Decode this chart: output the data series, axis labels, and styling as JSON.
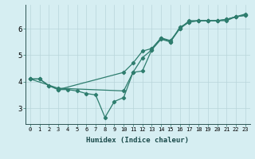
{
  "line1_x": [
    0,
    1,
    2,
    3,
    10,
    11,
    12,
    13,
    14,
    15,
    16,
    17,
    18,
    19,
    20,
    21,
    22,
    23
  ],
  "line1_y": [
    4.1,
    4.1,
    3.85,
    3.7,
    4.35,
    4.7,
    5.15,
    5.25,
    5.65,
    5.5,
    6.05,
    6.25,
    6.3,
    6.3,
    6.3,
    6.35,
    6.45,
    6.55
  ],
  "line2_x": [
    0,
    3,
    10,
    11,
    12,
    13,
    14,
    15,
    16,
    17,
    18,
    19,
    20,
    21,
    22,
    23
  ],
  "line2_y": [
    4.1,
    3.75,
    3.65,
    4.35,
    4.9,
    5.2,
    5.6,
    5.5,
    6.0,
    6.25,
    6.3,
    6.3,
    6.3,
    6.3,
    6.45,
    6.5
  ],
  "line3_x": [
    0,
    1,
    2,
    3,
    4,
    5,
    6,
    7,
    8,
    9,
    10,
    11,
    12,
    13,
    14,
    15,
    16,
    17,
    18,
    19,
    20,
    21,
    22,
    23
  ],
  "line3_y": [
    4.1,
    4.1,
    3.85,
    3.7,
    3.7,
    3.65,
    3.55,
    3.5,
    2.65,
    3.25,
    3.4,
    4.35,
    4.4,
    5.2,
    5.65,
    5.55,
    6.0,
    6.3,
    6.3,
    6.3,
    6.3,
    6.35,
    6.45,
    6.5
  ],
  "line_color": "#2e7d6e",
  "bg_color": "#d6eef2",
  "grid_color": "#b8d5da",
  "xlabel": "Humidex (Indice chaleur)",
  "xlim": [
    -0.5,
    23.5
  ],
  "ylim": [
    2.4,
    6.9
  ],
  "yticks": [
    3,
    4,
    5,
    6
  ],
  "xticks": [
    0,
    1,
    2,
    3,
    4,
    5,
    6,
    7,
    8,
    9,
    10,
    11,
    12,
    13,
    14,
    15,
    16,
    17,
    18,
    19,
    20,
    21,
    22,
    23
  ],
  "marker": "D",
  "markersize": 2.2,
  "linewidth": 0.9,
  "tick_fontsize": 5.0,
  "ytick_fontsize": 6.5,
  "xlabel_fontsize": 6.5
}
